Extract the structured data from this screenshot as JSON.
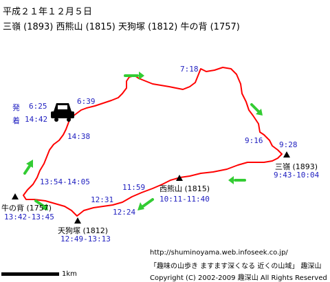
{
  "header": {
    "date": "平成２１年１２月５日",
    "peaks_line": "三嶺 (1893) 西熊山 (1815) 天狗塚 (1812) 牛の背 (1757)"
  },
  "legend": {
    "depart_label": "発",
    "depart_time": "6:25",
    "arrive_label": "着",
    "arrive_time": "14:42",
    "car_icon": "car-icon"
  },
  "route_color": "#ff0000",
  "arrow_color": "#33cc33",
  "time_color": "#2020c0",
  "waypoints": {
    "t1": "6:39",
    "t2": "7:18",
    "t3": "9:16",
    "t4": "9:28",
    "t5": "14:38",
    "t6": "13:54-14:05",
    "t7": "11:59",
    "t8": "12:31",
    "t9": "12:24"
  },
  "peaks": {
    "sanrei": {
      "name": "三嶺 (1893)",
      "time": "9:43-10:04"
    },
    "nishikuma": {
      "name": "西熊山 (1815)",
      "time": "10:11-11:40"
    },
    "tengu": {
      "name": "天狗塚 (1812)",
      "time": "12:49-13:13"
    },
    "ushinose": {
      "name": "牛の背 (1757)",
      "time": "13:42-13:45"
    }
  },
  "scale": {
    "label": "1km"
  },
  "footer": {
    "url": "http://shuminoyama.web.infoseek.co.jp/",
    "site": "「趣味の山歩き ますます深くなる 近くの山域」 趣深山",
    "copyright": "Copyright (C) 2002-2009 趣深山 All Rights Reserved"
  }
}
